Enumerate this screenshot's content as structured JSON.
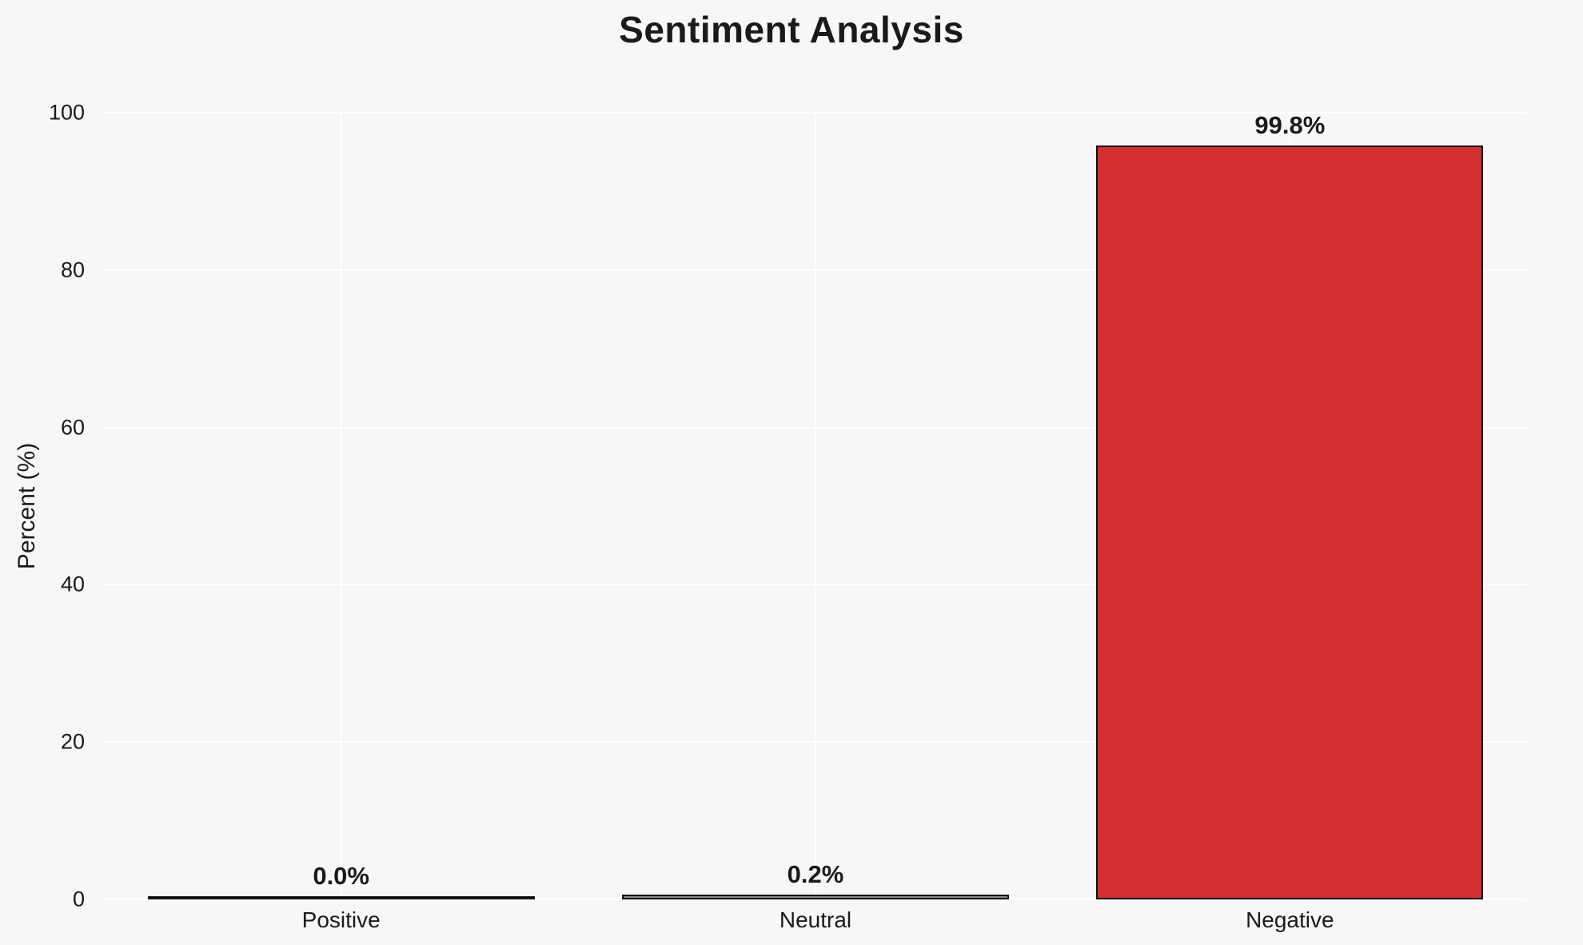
{
  "chart_data": {
    "type": "bar",
    "title": "Sentiment Analysis",
    "ylabel": "Percent (%)",
    "xlabel": "",
    "categories": [
      "Positive",
      "Neutral",
      "Negative"
    ],
    "values": [
      0.0,
      0.2,
      99.8
    ],
    "bar_labels": [
      "0.0%",
      "0.2%",
      "99.8%"
    ],
    "ylim": [
      0,
      100
    ],
    "yticks": [
      0,
      20,
      40,
      60,
      80,
      100
    ],
    "grid": "horizontal-light",
    "legend": "none",
    "bar_colors": [
      "#2e7d32",
      "#8a8a8a",
      "#d32f2f"
    ],
    "bar_edge_color": "#111111",
    "background_color": "#f7f7f8",
    "text_color": "#1a1a1a"
  }
}
